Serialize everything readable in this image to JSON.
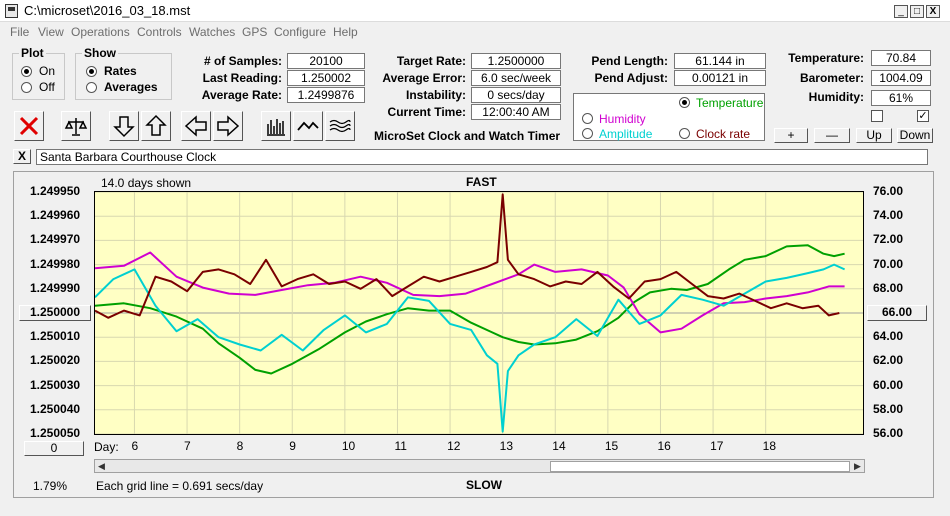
{
  "window": {
    "title": "C:\\microset\\2016_03_18.mst",
    "min": "_",
    "max": "□",
    "close": "X"
  },
  "menu": [
    "File",
    "View",
    "Operations",
    "Controls",
    "Watches",
    "GPS",
    "Configure",
    "Help"
  ],
  "plot_group": {
    "legend": "Plot",
    "options": [
      {
        "label": "On",
        "selected": true
      },
      {
        "label": "Off",
        "selected": false
      }
    ]
  },
  "show_group": {
    "legend": "Show",
    "options": [
      {
        "label": "Rates",
        "selected": true
      },
      {
        "label": "Averages",
        "selected": false
      }
    ]
  },
  "stats": [
    {
      "label": "# of Samples:",
      "value": "20100"
    },
    {
      "label": "Last Reading:",
      "value": "1.250002"
    },
    {
      "label": "Average Rate:",
      "value": "1.2499876"
    }
  ],
  "rate_stats": [
    {
      "label": "Target Rate:",
      "value": "1.2500000"
    },
    {
      "label": "Average Error:",
      "value": "6.0 sec/week"
    },
    {
      "label": "Instability:",
      "value": "0 secs/day"
    },
    {
      "label": "Current Time:",
      "value": "12:00:40 AM"
    }
  ],
  "pend": [
    {
      "label": "Pend Length:",
      "value": "61.144 in"
    },
    {
      "label": "Pend Adjust:",
      "value": "0.00121 in"
    }
  ],
  "env": [
    {
      "label": "Temperature:",
      "value": "70.84"
    },
    {
      "label": "Barometer:",
      "value": "1004.09"
    },
    {
      "label": "Humidity:",
      "value": "61%"
    }
  ],
  "env_checks": [
    false,
    true
  ],
  "env_buttons": [
    "+",
    "—",
    "Up",
    "Down"
  ],
  "app_caption": "MicroSet Clock and Watch Timer",
  "series_selector": [
    {
      "label": "Temperature",
      "color": "#00a000",
      "selected": true
    },
    {
      "label": "Humidity",
      "color": "#d000d0",
      "selected": false
    },
    {
      "label": "Amplitude",
      "color": "#00d0d0",
      "selected": false
    },
    {
      "label": "Clock rate",
      "color": "#7a0000",
      "selected": false
    }
  ],
  "toolbar_icons": [
    "stop-icon",
    "balance-scale-icon",
    "arrow-down-icon",
    "arrow-up-icon",
    "arrow-left-icon",
    "arrow-right-icon",
    "bar-graph-icon",
    "line-graph-icon",
    "wave-graph-icon"
  ],
  "clock_name": {
    "close": "X",
    "value": "Santa Barbara Courthouse Clock"
  },
  "chart_header": {
    "days_shown": "14.0 days shown",
    "top_label": "FAST",
    "bottom_label": "SLOW",
    "grid_note": "Each grid line = 0.691 secs/day",
    "percent": "1.79%",
    "day_label": "Day:"
  },
  "center_value": {
    "left": "1.250000",
    "right": "66.00"
  },
  "left_offset": "0",
  "chart_data": {
    "type": "line",
    "x_label": "Day",
    "x_range": [
      5.25,
      19.85
    ],
    "x_ticks": [
      6,
      7,
      8,
      9,
      10,
      11,
      12,
      13,
      14,
      15,
      16,
      17,
      18
    ],
    "y_left_ticks": [
      "1.249950",
      "1.249960",
      "1.249970",
      "1.249980",
      "1.249990",
      "1.250000",
      "1.250010",
      "1.250020",
      "1.250030",
      "1.250040",
      "1.250050"
    ],
    "y_left_range": [
      1.24995,
      1.25005
    ],
    "y_left_inverted": true,
    "y_right_ticks": [
      "76.00",
      "74.00",
      "72.00",
      "70.00",
      "68.00",
      "66.00",
      "64.00",
      "62.00",
      "60.00",
      "58.00",
      "56.00"
    ],
    "y_right_range": [
      56,
      76
    ],
    "grid": true,
    "series": [
      {
        "name": "Temperature",
        "axis": "right",
        "color": "#00a000",
        "x": [
          5.25,
          5.8,
          6.3,
          6.8,
          7.3,
          7.6,
          8.0,
          8.3,
          8.6,
          9.0,
          9.5,
          10.0,
          10.4,
          10.8,
          11.2,
          11.6,
          12.0,
          12.4,
          12.8,
          13.0,
          13.3,
          13.6,
          14.0,
          14.4,
          14.8,
          15.2,
          15.5,
          15.8,
          16.2,
          16.5,
          16.9,
          17.3,
          17.6,
          18.0,
          18.4,
          18.8,
          19.1,
          19.3,
          19.5
        ],
        "y": [
          66.6,
          66.8,
          66.4,
          65.7,
          64.7,
          63.5,
          62.3,
          61.3,
          61.0,
          61.8,
          63.0,
          64.4,
          65.3,
          65.9,
          66.4,
          66.2,
          66.2,
          65.2,
          64.4,
          64.0,
          63.6,
          63.4,
          63.5,
          63.8,
          64.5,
          65.6,
          66.9,
          67.7,
          68.0,
          67.9,
          68.4,
          69.6,
          70.4,
          70.7,
          71.5,
          71.6,
          70.9,
          70.7,
          70.9
        ]
      },
      {
        "name": "Humidity",
        "axis": "right",
        "color": "#d000d0",
        "x": [
          5.25,
          5.8,
          6.3,
          6.8,
          7.3,
          7.8,
          8.3,
          8.8,
          9.3,
          9.8,
          10.3,
          10.8,
          11.3,
          11.8,
          12.3,
          12.8,
          13.3,
          13.6,
          14.0,
          14.5,
          15.0,
          15.3,
          15.6,
          16.0,
          16.4,
          16.8,
          17.2,
          17.6,
          18.0,
          18.4,
          18.8,
          19.2,
          19.5
        ],
        "y": [
          69.7,
          69.9,
          71.0,
          69.0,
          68.1,
          67.6,
          67.5,
          67.9,
          68.3,
          68.5,
          69.0,
          68.5,
          67.5,
          67.4,
          67.6,
          68.4,
          69.2,
          70.0,
          69.4,
          69.6,
          69.1,
          68.1,
          65.9,
          64.4,
          64.7,
          65.8,
          66.8,
          66.9,
          67.2,
          67.4,
          67.7,
          68.2,
          68.2
        ]
      },
      {
        "name": "Amplitude",
        "axis": "right",
        "color": "#00d0d0",
        "x": [
          5.25,
          5.6,
          6.0,
          6.4,
          6.8,
          7.2,
          7.6,
          8.0,
          8.4,
          8.8,
          9.2,
          9.6,
          10.0,
          10.4,
          10.8,
          11.2,
          11.6,
          12.0,
          12.4,
          12.7,
          12.9,
          13.0,
          13.1,
          13.3,
          13.6,
          14.0,
          14.4,
          14.8,
          15.2,
          15.6,
          16.0,
          16.4,
          16.8,
          17.2,
          17.6,
          18.0,
          18.4,
          18.8,
          19.1,
          19.3,
          19.5
        ],
        "y": [
          67.3,
          68.8,
          69.6,
          66.6,
          64.5,
          65.5,
          64.0,
          63.4,
          62.9,
          64.2,
          62.9,
          64.6,
          65.8,
          64.4,
          65.1,
          67.3,
          67.0,
          65.1,
          64.6,
          62.5,
          61.8,
          56.2,
          61.2,
          62.5,
          63.4,
          64.0,
          65.5,
          64.1,
          67.1,
          65.1,
          65.8,
          67.5,
          67.1,
          66.6,
          67.6,
          68.6,
          68.9,
          69.3,
          69.6,
          70.0,
          69.6
        ]
      },
      {
        "name": "Clock rate",
        "axis": "left",
        "color": "#7a0000",
        "x": [
          5.25,
          5.5,
          5.8,
          6.1,
          6.4,
          6.7,
          7.0,
          7.3,
          7.6,
          7.9,
          8.2,
          8.5,
          8.8,
          9.1,
          9.4,
          9.7,
          10.0,
          10.3,
          10.6,
          10.9,
          11.2,
          11.5,
          11.8,
          12.1,
          12.4,
          12.7,
          12.9,
          13.0,
          13.1,
          13.3,
          13.6,
          13.9,
          14.2,
          14.5,
          14.8,
          15.1,
          15.4,
          15.7,
          16.0,
          16.3,
          16.6,
          16.9,
          17.2,
          17.5,
          17.8,
          18.1,
          18.4,
          18.7,
          19.0,
          19.2,
          19.4
        ],
        "y": [
          1.249999,
          1.250002,
          1.249999,
          1.250001,
          1.249985,
          1.249987,
          1.249991,
          1.249983,
          1.249982,
          1.249984,
          1.249988,
          1.249978,
          1.249989,
          1.249986,
          1.249984,
          1.249988,
          1.249987,
          1.24999,
          1.249986,
          1.249993,
          1.249989,
          1.249985,
          1.249987,
          1.249985,
          1.249983,
          1.249981,
          1.249979,
          1.249951,
          1.249978,
          1.249984,
          1.249986,
          1.249989,
          1.249987,
          1.249988,
          1.249983,
          1.249989,
          1.249994,
          1.249987,
          1.249986,
          1.249983,
          1.249988,
          1.249993,
          1.249994,
          1.249992,
          1.249995,
          1.249998,
          1.249996,
          1.249998,
          1.249997,
          1.250001,
          1.25
        ]
      }
    ]
  }
}
